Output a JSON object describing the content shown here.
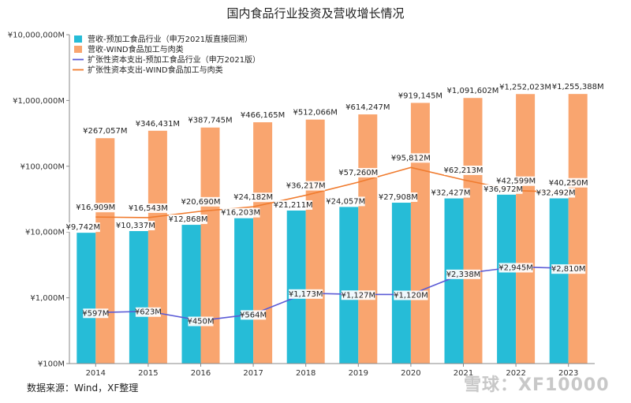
{
  "chart_data": {
    "type": "bar",
    "title": "国内食品行业投资及营收增长情况",
    "y_scale": "log",
    "ylim": [
      100,
      10000000
    ],
    "y_ticks": [
      "¥100M",
      "¥1,000M",
      "¥10,000M",
      "¥100,000M",
      "¥1,000,000M",
      "¥10,000,000M"
    ],
    "categories": [
      "2014",
      "2015",
      "2016",
      "2017",
      "2018",
      "2019",
      "2020",
      "2021",
      "2022",
      "2023"
    ],
    "legend_position": "top-left",
    "series": [
      {
        "name": "营收-预加工食品行业（申万2021版直接回溯）",
        "kind": "bar",
        "color": "#26bcd7",
        "values": [
          9742,
          10337,
          12868,
          16203,
          21211,
          24057,
          27908,
          32427,
          36972,
          32492
        ],
        "labels": [
          "¥9,742M",
          "¥10,337M",
          "¥12,868M",
          "¥16,203M",
          "¥21,211M",
          "¥24,057M",
          "¥27,908M",
          "¥32,427M",
          "¥36,972M",
          "¥32,492M"
        ]
      },
      {
        "name": "营收-WIND食品加工与肉类",
        "kind": "bar",
        "color": "#f9a56f",
        "values": [
          267057,
          346431,
          387745,
          466165,
          512066,
          614247,
          919145,
          1091602,
          1252023,
          1255388
        ],
        "labels": [
          "¥267,057M",
          "¥346,431M",
          "¥387,745M",
          "¥466,165M",
          "¥512,066M",
          "¥614,247M",
          "¥919,145M",
          "¥1,091,602M",
          "¥1,252,023M",
          "¥1,255,388M"
        ]
      },
      {
        "name": "扩张性资本支出-预加工食品行业（申万2021版）",
        "kind": "line",
        "color": "#5b5bd6",
        "values": [
          597,
          623,
          450,
          564,
          1173,
          1127,
          1120,
          2338,
          2945,
          2810
        ],
        "labels": [
          "¥597M",
          "¥623M",
          "¥450M",
          "¥564M",
          "¥1,173M",
          "¥1,127M",
          "¥1,120M",
          "¥2,338M",
          "¥2,945M",
          "¥2,810M"
        ]
      },
      {
        "name": "扩张性资本支出-WIND食品加工与肉类",
        "kind": "line",
        "color": "#f07b2e",
        "values": [
          16909,
          16543,
          20690,
          24182,
          36217,
          57260,
          95812,
          62213,
          42599,
          40250
        ],
        "labels": [
          "¥16,909M",
          "¥16,543M",
          "¥20,690M",
          "¥24,182M",
          "¥36,217M",
          "¥57,260M",
          "¥95,812M",
          "¥62,213M",
          "¥42,599M",
          "¥40,250M"
        ]
      }
    ],
    "grid": false
  },
  "footer": {
    "source": "数据来源：Wind，XF整理",
    "watermark": "雪球：XF10000"
  }
}
